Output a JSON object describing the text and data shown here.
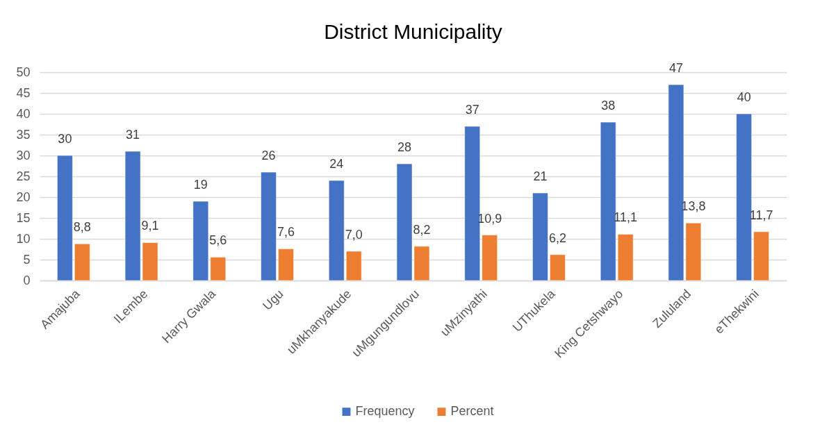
{
  "chart_data": {
    "type": "bar",
    "title": "District Municipality",
    "categories": [
      "Amajuba",
      "ILembe",
      "Harry Gwala",
      "Ugu",
      "uMkhanyakude",
      "uMgungundlovu",
      "uMzinyathi",
      "UThukela",
      "King Cetshwayo",
      "Zululand",
      "eThekwini"
    ],
    "series": [
      {
        "name": "Frequency",
        "color": "#4472c4",
        "values": [
          30,
          31,
          19,
          26,
          24,
          28,
          37,
          21,
          38,
          47,
          40
        ],
        "value_labels": [
          "30",
          "31",
          "19",
          "26",
          "24",
          "28",
          "37",
          "21",
          "38",
          "47",
          "40"
        ]
      },
      {
        "name": "Percent",
        "color": "#ed7d31",
        "values": [
          8.8,
          9.1,
          5.6,
          7.6,
          7.0,
          8.2,
          10.9,
          6.2,
          11.1,
          13.8,
          11.7
        ],
        "value_labels": [
          "8,8",
          "9,1",
          "5,6",
          "7,6",
          "7,0",
          "8,2",
          "10,9",
          "6,2",
          "11,1",
          "13,8",
          "11,7"
        ]
      }
    ],
    "ylim": [
      0,
      50
    ],
    "yticks": [
      0,
      5,
      10,
      15,
      20,
      25,
      30,
      35,
      40,
      45,
      50
    ],
    "grid": "y",
    "legend": "bottom"
  }
}
